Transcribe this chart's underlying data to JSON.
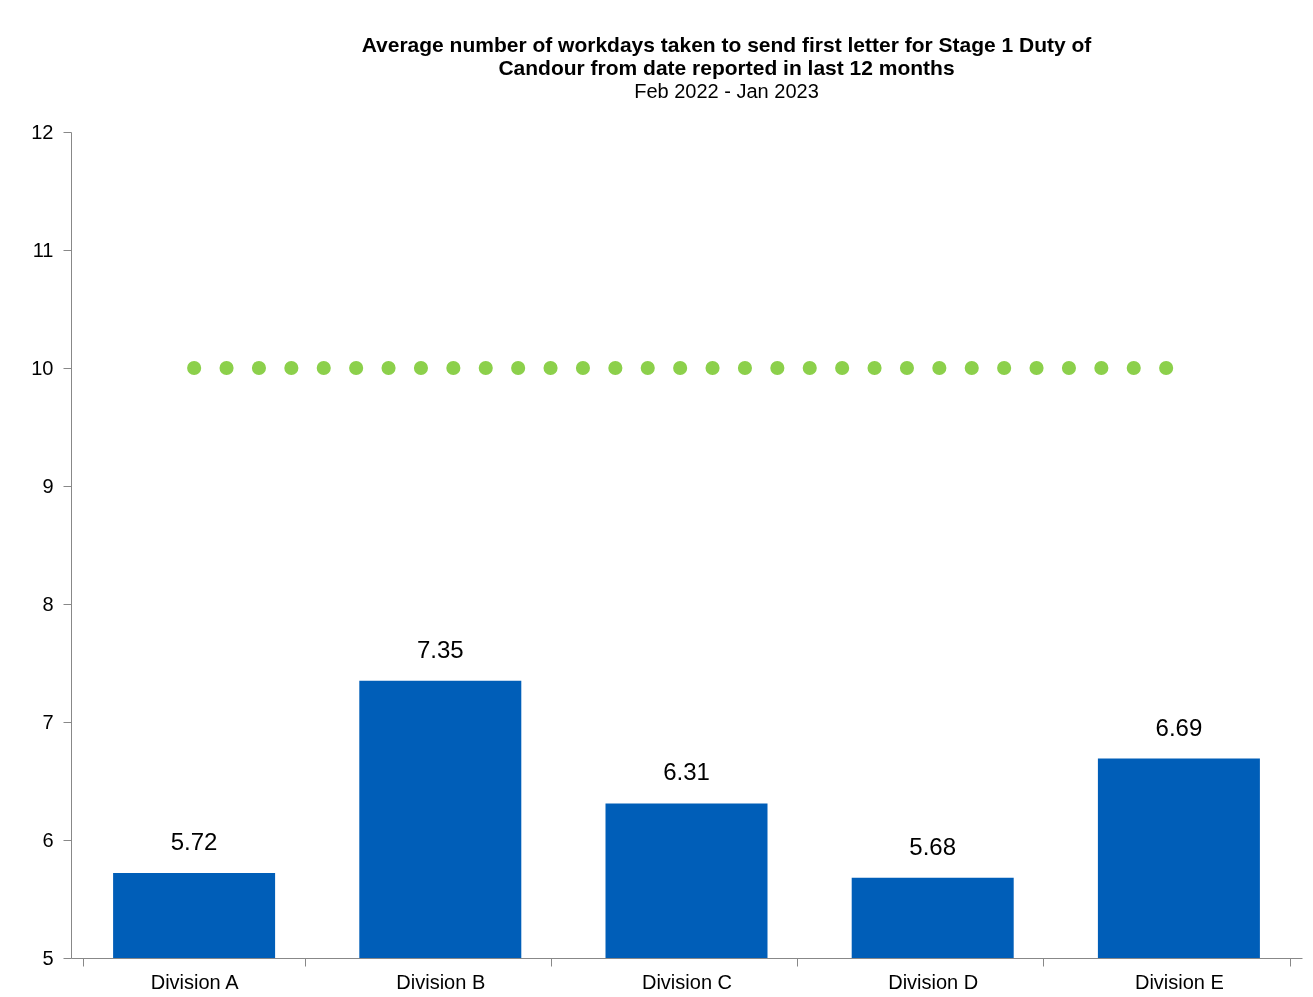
{
  "chart_data": {
    "type": "bar",
    "title": "Average number of workdays taken to send first letter for Stage 1 Duty of Candour from date reported in last 12 months",
    "subtitle": "Feb 2022 - Jan 2023",
    "categories": [
      "Division A",
      "Division B",
      "Division C",
      "Division D",
      "Division E"
    ],
    "values": [
      5.72,
      7.35,
      6.31,
      5.68,
      6.69
    ],
    "color": "#005eb8",
    "ylim": [
      5,
      12
    ],
    "yticks": [
      5,
      6,
      7,
      8,
      9,
      10,
      11,
      12
    ],
    "grid": false,
    "data_labels": true,
    "ref_lines": [
      {
        "axis": "y",
        "value": 10,
        "color": "#8cd04b",
        "line_style": "dotted"
      }
    ]
  }
}
